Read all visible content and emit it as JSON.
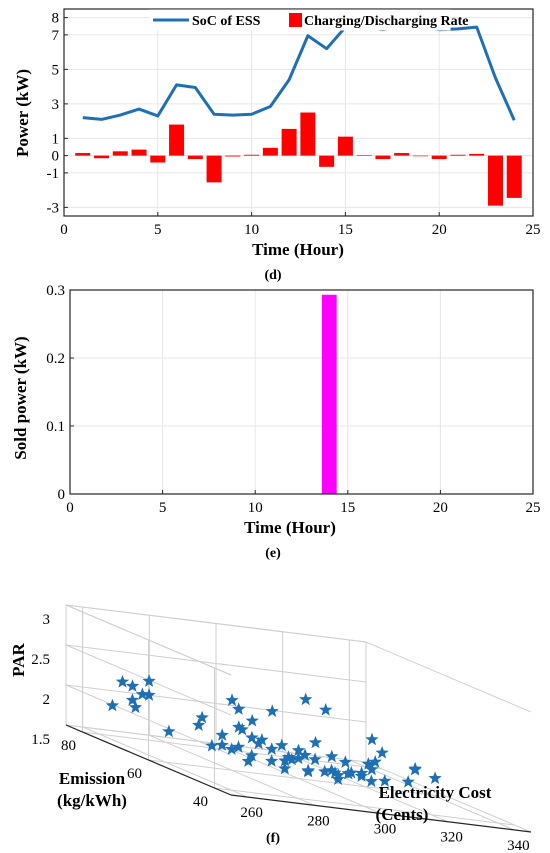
{
  "chart_data": [
    {
      "type": "bar+line",
      "caption": "(d)",
      "xlabel": "Time (Hour)",
      "ylabel": "Power (kW)",
      "xlim": [
        0,
        25
      ],
      "ylim": [
        -3.5,
        8.5
      ],
      "xticks": [
        "0",
        "5",
        "10",
        "15",
        "20",
        "25"
      ],
      "yticks": [
        "-3",
        "-1",
        "0",
        "1",
        "3",
        "5",
        "7",
        "8"
      ],
      "yticks_values": [
        -3,
        -1,
        0,
        1,
        3,
        5,
        7,
        8
      ],
      "grid": true,
      "legend_position": "top",
      "x": [
        1,
        2,
        3,
        4,
        5,
        6,
        7,
        8,
        9,
        10,
        11,
        12,
        13,
        14,
        15,
        16,
        17,
        18,
        19,
        20,
        21,
        22,
        23,
        24
      ],
      "series": [
        {
          "name": "SoC of ESS",
          "kind": "line",
          "color": "#1f6fb4",
          "values": [
            2.2,
            2.1,
            2.35,
            2.7,
            2.3,
            4.1,
            3.95,
            2.4,
            2.35,
            2.4,
            2.85,
            4.4,
            6.95,
            6.2,
            7.45,
            7.45,
            7.3,
            7.45,
            7.45,
            7.3,
            7.35,
            7.45,
            4.5,
            2.05
          ]
        },
        {
          "name": "Charging/Discharging Rate",
          "kind": "bar",
          "color": "#ff0000",
          "values": [
            0.15,
            -0.15,
            0.25,
            0.35,
            -0.4,
            1.8,
            -0.2,
            -1.55,
            -0.05,
            0.05,
            0.45,
            1.55,
            2.5,
            -0.65,
            1.1,
            0.02,
            -0.2,
            0.15,
            0,
            -0.2,
            0.05,
            0.1,
            -2.9,
            -2.45
          ]
        }
      ]
    },
    {
      "type": "bar",
      "caption": "(e)",
      "xlabel": "Time (Hour)",
      "ylabel": "Sold power (kW)",
      "xlim": [
        0,
        25
      ],
      "ylim": [
        0,
        0.3
      ],
      "xticks": [
        "0",
        "5",
        "10",
        "15",
        "20",
        "25"
      ],
      "yticks": [
        "0",
        "0.1",
        "0.2",
        "0.3"
      ],
      "yticks_values": [
        0,
        0.1,
        0.2,
        0.3
      ],
      "grid": true,
      "color": "#ff00ff",
      "x": [
        14
      ],
      "values": [
        0.293
      ]
    },
    {
      "type": "scatter3d",
      "caption": "(f)",
      "xlabel": "Electricity Cost (Cents)",
      "ylabel": "Emission (kg/kWh)",
      "zlabel": "PAR",
      "xticks": [
        "260",
        "280",
        "300",
        "320",
        "340"
      ],
      "yticks": [
        "40",
        "60",
        "80"
      ],
      "zticks": [
        "1.5",
        "2",
        "2.5",
        "3"
      ],
      "xlim": [
        255,
        345
      ],
      "ylim": [
        35,
        85
      ],
      "zlim": [
        1.5,
        3
      ],
      "marker": "star",
      "color": "#1f6fb4",
      "grid": true,
      "points": [
        [
          262,
          71,
          2.0
        ],
        [
          270,
          80,
          2.15
        ],
        [
          262,
          78,
          1.9
        ],
        [
          266,
          79,
          2.2
        ],
        [
          268,
          78,
          2.0
        ],
        [
          270,
          77,
          2.1
        ],
        [
          272,
          77,
          2.1
        ],
        [
          274,
          79,
          2.25
        ],
        [
          272,
          71,
          1.75
        ],
        [
          275,
          65,
          1.95
        ],
        [
          280,
          69,
          2.0
        ],
        [
          276,
          62,
          1.75
        ],
        [
          285,
          68,
          1.7
        ],
        [
          282,
          60,
          1.8
        ],
        [
          286,
          66,
          2.3
        ],
        [
          288,
          66,
          2.2
        ],
        [
          289,
          63,
          1.9
        ],
        [
          290,
          62,
          1.85
        ],
        [
          290,
          58,
          1.85
        ],
        [
          291,
          62,
          1.9
        ],
        [
          294,
          59,
          1.9
        ],
        [
          296,
          58,
          1.75
        ],
        [
          297,
          60,
          1.75
        ],
        [
          296,
          56,
          1.8
        ],
        [
          298,
          56,
          1.85
        ],
        [
          300,
          60,
          1.85
        ],
        [
          302,
          57,
          1.8
        ],
        [
          302,
          52,
          1.75
        ],
        [
          304,
          52,
          1.7
        ],
        [
          306,
          51,
          1.75
        ],
        [
          308,
          58,
          1.85
        ],
        [
          310,
          55,
          1.7
        ],
        [
          312,
          53,
          1.75
        ],
        [
          309,
          50,
          1.75
        ],
        [
          305,
          54,
          1.7
        ],
        [
          300,
          48,
          1.7
        ],
        [
          295,
          52,
          1.7
        ],
        [
          292,
          49,
          1.75
        ],
        [
          288,
          52,
          1.8
        ],
        [
          286,
          54,
          1.75
        ],
        [
          283,
          57,
          1.75
        ],
        [
          280,
          55,
          1.7
        ],
        [
          277,
          57,
          1.8
        ],
        [
          290,
          68,
          1.95
        ],
        [
          287,
          70,
          1.8
        ],
        [
          293,
          70,
          1.9
        ],
        [
          298,
          72,
          2.0
        ],
        [
          304,
          72,
          2.15
        ],
        [
          315,
          70,
          1.85
        ],
        [
          320,
          66,
          1.7
        ],
        [
          325,
          62,
          1.8
        ],
        [
          330,
          55,
          1.85
        ],
        [
          320,
          58,
          1.75
        ],
        [
          316,
          55,
          1.85
        ],
        [
          326,
          64,
          2.05
        ],
        [
          318,
          76,
          2.3
        ],
        [
          324,
          76,
          2.2
        ],
        [
          333,
          68,
          1.85
        ],
        [
          335,
          60,
          1.8
        ],
        [
          338,
          57,
          1.75
        ],
        [
          323,
          50,
          1.75
        ],
        [
          314,
          48,
          1.75
        ],
        [
          308,
          46,
          1.75
        ],
        [
          300,
          44,
          1.85
        ],
        [
          294,
          46,
          1.8
        ],
        [
          284,
          48,
          1.75
        ]
      ]
    }
  ]
}
